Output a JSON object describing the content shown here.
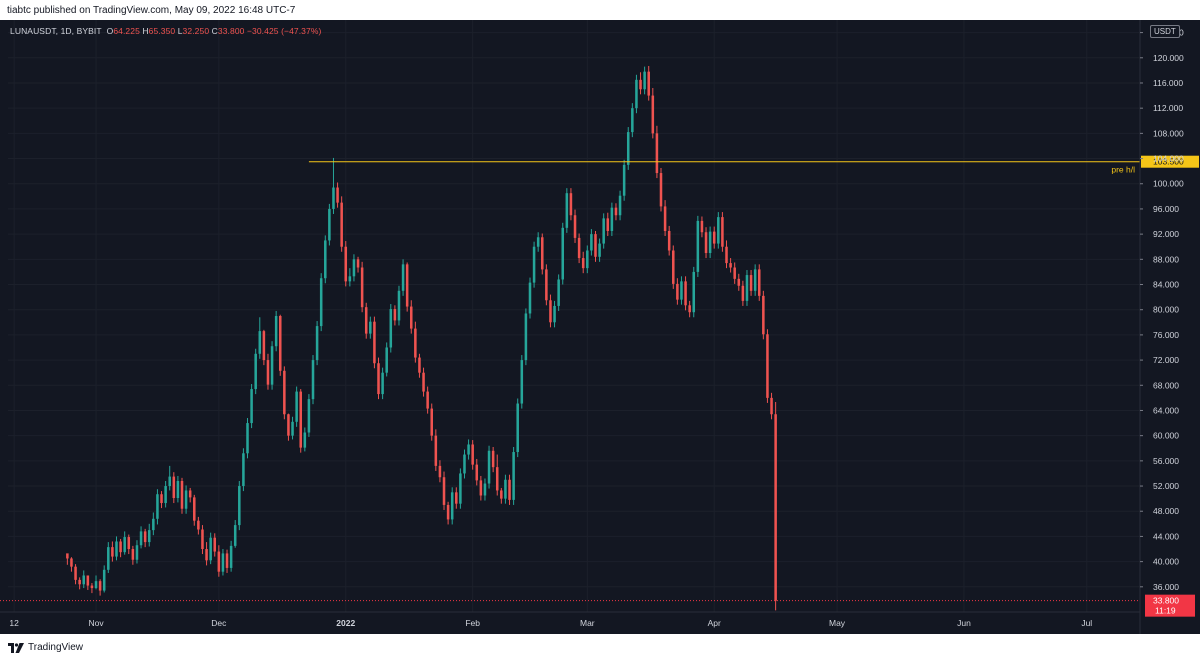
{
  "header": {
    "publish_text": "tiabtc published on TradingView.com, May 09, 2022 16:48 UTC-7"
  },
  "footer": {
    "brand": "TradingView"
  },
  "chart_data": {
    "type": "candlestick",
    "symbol_line": {
      "symbol": "LUNAUSDT, 1D, BYBIT",
      "o_label": "O",
      "o_value": "64.225",
      "h_label": "H",
      "h_value": "65.350",
      "l_label": "L",
      "l_value": "32.250",
      "c_label": "C",
      "c_value": "33.800",
      "change": "−30.425 (−47.37%)"
    },
    "currency_unit": "USDT",
    "ylim": [
      32,
      126
    ],
    "y_ticks": [
      "124.000",
      "120.000",
      "116.000",
      "112.000",
      "108.000",
      "104.000",
      "100.000",
      "96.000",
      "92.000",
      "88.000",
      "84.000",
      "80.000",
      "76.000",
      "72.000",
      "68.000",
      "64.000",
      "60.000",
      "56.000",
      "52.000",
      "48.000",
      "44.000",
      "40.000",
      "36.000"
    ],
    "x_labels": [
      {
        "label": "12",
        "day": -13
      },
      {
        "label": "Nov",
        "day": 7
      },
      {
        "label": "Dec",
        "day": 37
      },
      {
        "label": "2022",
        "day": 68
      },
      {
        "label": "Feb",
        "day": 99
      },
      {
        "label": "Mar",
        "day": 127
      },
      {
        "label": "Apr",
        "day": 158
      },
      {
        "label": "May",
        "day": 188
      },
      {
        "label": "Jun",
        "day": 219
      },
      {
        "label": "Jul",
        "day": 249
      }
    ],
    "x_range_days": [
      -14.5,
      262
    ],
    "horizontal_line": {
      "value": 103.5,
      "start_day": 59,
      "label": "pre h/l",
      "price_label": "103.500",
      "color": "#f5c518"
    },
    "last_price": {
      "value": 33.8,
      "label": "33.800",
      "countdown": "11:19",
      "color": "#f23645"
    },
    "colors": {
      "up": "#26a69a",
      "down": "#ef5350",
      "background": "#131722",
      "text": "#d1d4dc"
    },
    "closes": [
      40.5,
      39.2,
      37.1,
      36.4,
      37.8,
      36.2,
      35.8,
      36.9,
      35.4,
      38.7,
      42.3,
      40.8,
      43.2,
      41.5,
      43.9,
      42.0,
      40.3,
      42.6,
      44.8,
      43.1,
      45.0,
      46.8,
      50.7,
      49.3,
      52.0,
      53.5,
      50.1,
      52.8,
      48.4,
      51.3,
      50.2,
      46.5,
      45.1,
      42.0,
      40.2,
      43.8,
      41.6,
      38.4,
      41.3,
      39.0,
      42.5,
      45.8,
      52.0,
      57.2,
      62.0,
      67.4,
      73.0,
      76.6,
      72.0,
      68.1,
      74.2,
      79.0,
      70.3,
      63.4,
      60.0,
      62.2,
      67.0,
      58.1,
      60.5,
      65.8,
      72.0,
      77.4,
      85.0,
      91.0,
      96.0,
      99.4,
      97.0,
      90.0,
      84.5,
      85.3,
      88.0,
      86.7,
      80.4,
      76.2,
      78.1,
      71.5,
      66.6,
      70.0,
      74.0,
      80.1,
      78.3,
      83.0,
      87.2,
      80.5,
      77.0,
      72.4,
      70.0,
      67.0,
      64.3,
      60.0,
      55.2,
      53.4,
      49.0,
      46.7,
      51.0,
      49.2,
      54.0,
      57.0,
      58.6,
      55.4,
      52.9,
      50.5,
      52.4,
      57.6,
      55.0,
      51.3,
      50.0,
      53.0,
      49.8,
      57.4,
      65.1,
      72.0,
      79.4,
      84.3,
      90.0,
      91.5,
      86.4,
      81.5,
      78.0,
      80.6,
      84.8,
      93.0,
      98.5,
      95.0,
      91.4,
      88.2,
      86.6,
      89.4,
      92.0,
      88.4,
      90.5,
      94.5,
      92.5,
      96.2,
      95.0,
      98.1,
      103.0,
      108.2,
      112.0,
      116.5,
      115.0,
      117.8,
      114.0,
      108.0,
      101.7,
      96.4,
      92.5,
      89.4,
      84.1,
      81.6,
      84.5,
      80.7,
      79.6,
      86.0,
      94.1,
      92.3,
      89.0,
      92.4,
      90.5,
      94.7,
      90.0,
      87.4,
      86.7,
      84.9,
      83.8,
      81.4,
      85.5,
      83.0,
      86.4,
      82.2,
      76.1,
      66.0,
      63.4,
      33.8
    ],
    "highs": [
      41.2,
      40.7,
      39.6,
      37.5,
      38.6,
      37.6,
      36.6,
      37.8,
      37.2,
      39.4,
      43.1,
      43.2,
      44.0,
      43.6,
      44.8,
      44.3,
      42.5,
      43.4,
      45.6,
      45.2,
      46.0,
      47.8,
      51.5,
      51.2,
      52.8,
      55.2,
      54.2,
      53.6,
      53.3,
      52.1,
      51.7,
      50.6,
      47.1,
      45.8,
      43.1,
      44.6,
      44.5,
      42.6,
      42.0,
      41.9,
      43.3,
      46.6,
      52.8,
      58.0,
      62.8,
      68.2,
      73.8,
      78.8,
      76.8,
      73.0,
      75.0,
      79.8,
      79.2,
      71.0,
      63.5,
      63.0,
      67.8,
      67.4,
      61.3,
      66.6,
      72.8,
      78.2,
      85.8,
      91.8,
      96.8,
      104.1,
      100.2,
      98.0,
      90.9,
      86.6,
      88.8,
      88.4,
      87.6,
      81.1,
      78.9,
      78.9,
      72.4,
      70.8,
      74.8,
      80.9,
      80.7,
      83.8,
      88.0,
      87.5,
      81.5,
      78.1,
      73.0,
      70.8,
      67.8,
      65.1,
      61.0,
      56.1,
      54.3,
      49.5,
      51.8,
      51.8,
      54.8,
      57.8,
      59.4,
      59.3,
      56.3,
      53.6,
      53.2,
      58.4,
      58.2,
      57.0,
      51.7,
      53.8,
      53.8,
      58.2,
      65.9,
      72.8,
      80.2,
      85.1,
      90.8,
      92.3,
      92.1,
      87.2,
      82.4,
      81.4,
      85.6,
      93.8,
      99.3,
      99.3,
      95.9,
      92.1,
      89.2,
      90.2,
      92.8,
      92.5,
      91.3,
      95.3,
      95.4,
      97.0,
      96.9,
      98.9,
      103.8,
      109.0,
      112.8,
      117.3,
      117.7,
      118.6,
      118.7,
      115.2,
      109.2,
      102.5,
      97.4,
      93.3,
      90.2,
      85.0,
      85.3,
      85.3,
      81.4,
      86.8,
      94.9,
      94.8,
      93.1,
      93.2,
      93.2,
      95.5,
      95.5,
      91.0,
      88.2,
      87.5,
      85.7,
      84.6,
      86.3,
      86.3,
      87.2,
      87.2,
      83.0,
      76.9,
      66.8,
      65.35
    ],
    "lows": [
      39.5,
      38.4,
      36.4,
      35.6,
      35.8,
      35.5,
      35.0,
      35.6,
      34.6,
      35.1,
      38.2,
      40.0,
      40.2,
      40.7,
      41.1,
      41.2,
      39.5,
      39.7,
      42.1,
      42.3,
      42.4,
      44.2,
      45.9,
      48.5,
      48.6,
      51.3,
      49.3,
      49.4,
      47.6,
      47.6,
      49.4,
      45.7,
      44.3,
      41.2,
      39.4,
      39.6,
      40.8,
      37.6,
      37.8,
      38.2,
      38.4,
      42.2,
      45.0,
      51.2,
      56.4,
      61.2,
      66.6,
      72.2,
      71.2,
      67.3,
      67.3,
      73.4,
      69.5,
      62.6,
      59.2,
      59.4,
      61.4,
      57.3,
      57.5,
      59.8,
      65.0,
      71.2,
      76.6,
      84.2,
      90.2,
      95.2,
      96.2,
      89.2,
      83.7,
      83.7,
      84.5,
      85.9,
      79.6,
      75.4,
      75.4,
      70.7,
      65.8,
      65.8,
      69.4,
      73.2,
      77.5,
      77.5,
      82.2,
      79.7,
      76.2,
      71.6,
      69.2,
      66.2,
      63.5,
      59.2,
      54.4,
      52.6,
      48.2,
      45.9,
      45.9,
      48.4,
      48.4,
      53.2,
      56.2,
      54.6,
      52.1,
      49.7,
      49.7,
      51.6,
      54.2,
      50.5,
      49.2,
      49.2,
      49.0,
      49.0,
      56.6,
      64.3,
      71.2,
      78.6,
      83.5,
      89.2,
      85.6,
      80.7,
      77.2,
      77.2,
      79.8,
      84.0,
      92.2,
      94.2,
      90.6,
      87.4,
      85.8,
      85.8,
      88.6,
      87.6,
      87.6,
      89.7,
      91.7,
      91.7,
      94.2,
      94.2,
      97.3,
      102.2,
      107.4,
      111.2,
      114.2,
      114.2,
      113.2,
      107.2,
      100.9,
      95.6,
      91.7,
      88.6,
      83.3,
      80.8,
      80.8,
      79.9,
      78.8,
      78.8,
      85.2,
      91.5,
      88.2,
      88.2,
      89.7,
      89.7,
      89.2,
      86.6,
      85.9,
      84.1,
      83.0,
      80.6,
      80.6,
      82.2,
      82.2,
      81.4,
      75.3,
      65.2,
      62.6,
      32.25
    ]
  }
}
